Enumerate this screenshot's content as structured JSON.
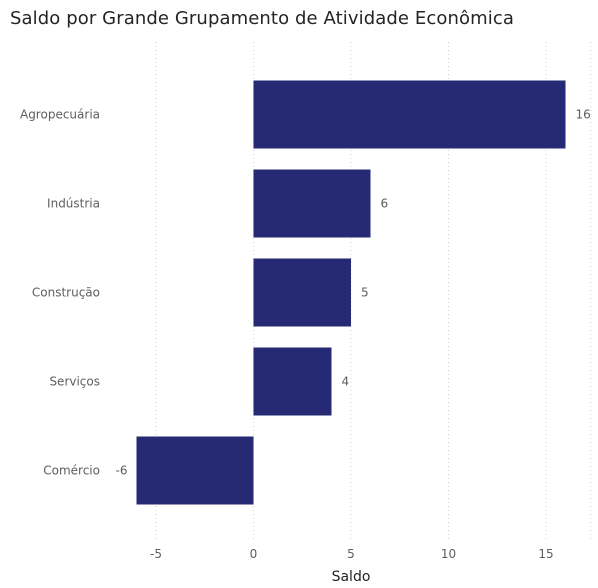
{
  "chart_data": {
    "type": "bar",
    "orientation": "horizontal",
    "title": "Saldo por Grande Grupamento de Atividade Econômica",
    "xlabel": "Saldo",
    "ylabel": "",
    "categories": [
      "Agropecuária",
      "Indústria",
      "Construção",
      "Serviços",
      "Comércio"
    ],
    "values": [
      16,
      6,
      5,
      4,
      -6
    ],
    "data_labels": [
      "16",
      "6",
      "5",
      "4",
      "-6"
    ],
    "xticks": [
      -5,
      0,
      5,
      10,
      15
    ],
    "xtick_labels": [
      "-5",
      "0",
      "5",
      "10",
      "15"
    ],
    "xlim": [
      -6.5,
      16.5
    ],
    "grid": "vertical-dotted",
    "legend": "none",
    "bar_color": "#262A74"
  }
}
